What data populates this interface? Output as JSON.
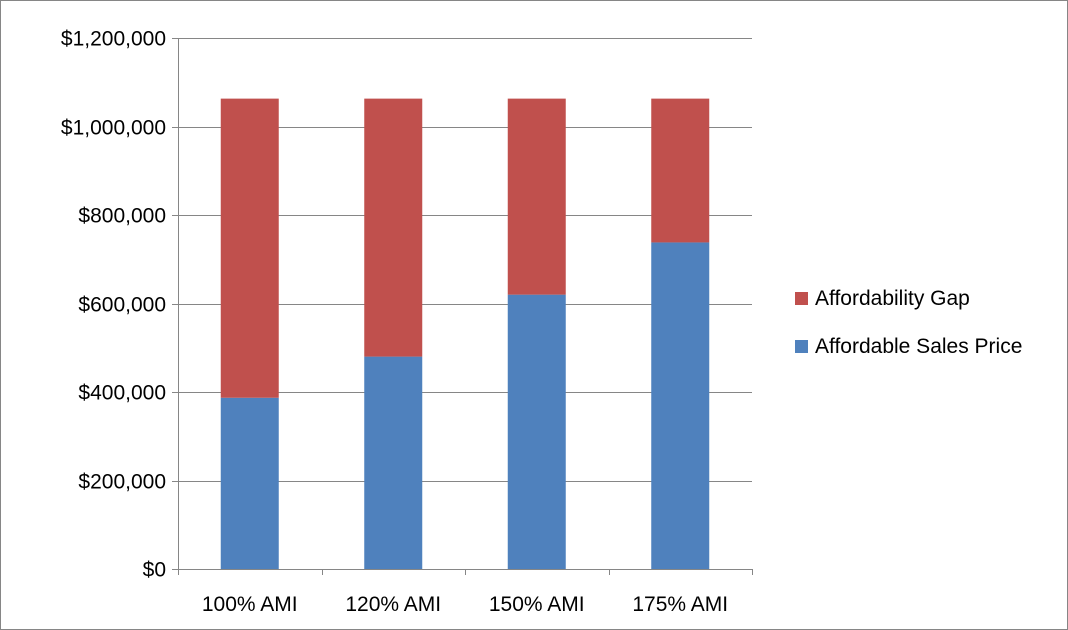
{
  "chart_data": {
    "type": "bar",
    "stacked": true,
    "categories": [
      "100% AMI",
      "120% AMI",
      "150% AMI",
      "175% AMI"
    ],
    "series": [
      {
        "name": "Affordable Sales Price",
        "color": "#4f81bd",
        "values": [
          387000,
          480000,
          620000,
          738000
        ]
      },
      {
        "name": "Affordability Gap",
        "color": "#c0504d",
        "values": [
          676000,
          583000,
          443000,
          325000
        ]
      }
    ],
    "ylim": [
      0,
      1200000
    ],
    "yticks": [
      0,
      200000,
      400000,
      600000,
      800000,
      1000000,
      1200000
    ],
    "ytick_labels": [
      "$0",
      "$200,000",
      "$400,000",
      "$600,000",
      "$800,000",
      "$1,000,000",
      "$1,200,000"
    ],
    "grid": true,
    "legend_position": "right",
    "legend_order": [
      "Affordability Gap",
      "Affordable Sales Price"
    ]
  }
}
